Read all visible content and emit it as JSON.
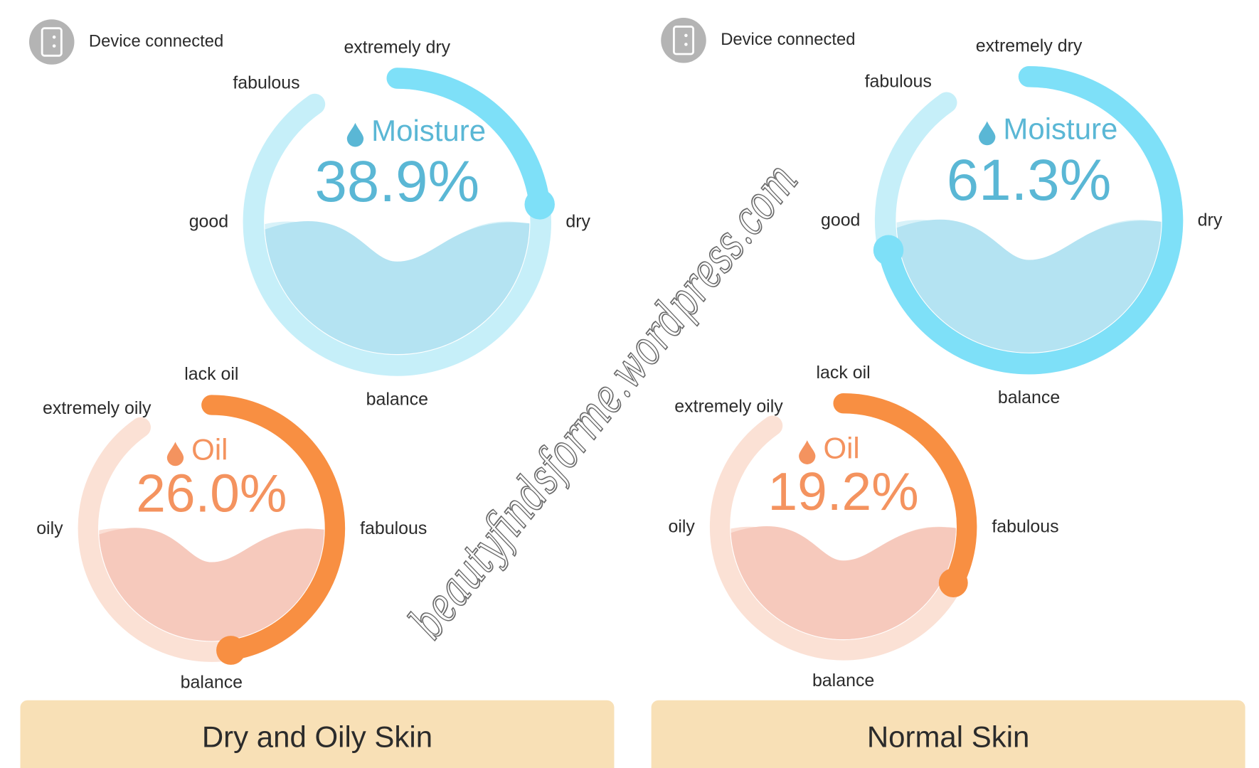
{
  "panels": [
    {
      "status": "Device connected",
      "moisture": {
        "title": "Moisture",
        "value": "38.9%",
        "labels": {
          "top": "extremely dry",
          "upper_left": "fabulous",
          "left": "good",
          "right": "dry",
          "bottom": "balance"
        }
      },
      "oil": {
        "title": "Oil",
        "value": "26.0%",
        "labels": {
          "top": "lack oil",
          "upper_left": "extremely oily",
          "left": "oily",
          "right": "fabulous",
          "bottom": "balance"
        }
      },
      "result": "Dry and Oily Skin"
    },
    {
      "status": "Device connected",
      "moisture": {
        "title": "Moisture",
        "value": "61.3%",
        "labels": {
          "top": "extremely dry",
          "upper_left": "fabulous",
          "left": "good",
          "right": "dry",
          "bottom": "balance"
        }
      },
      "oil": {
        "title": "Oil",
        "value": "19.2%",
        "labels": {
          "top": "lack oil",
          "upper_left": "extremely oily",
          "left": "oily",
          "right": "fabulous",
          "bottom": "balance"
        }
      },
      "result": "Normal Skin"
    }
  ],
  "watermark": "beautyfindsforme.wordpress.com"
}
